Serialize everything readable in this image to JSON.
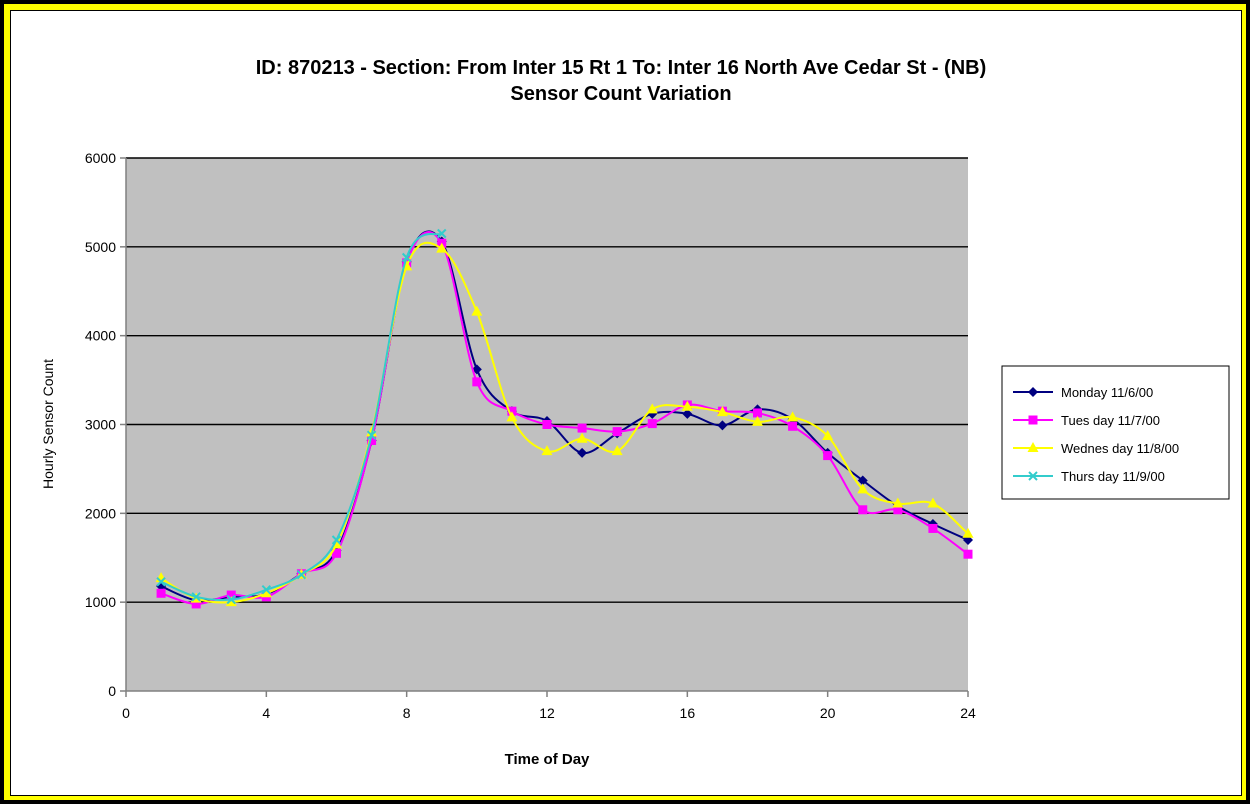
{
  "chart_data": {
    "type": "line",
    "title": "ID: 870213 - Section:  From Inter 15 Rt 1  To: Inter 16 North Ave Cedar St - (NB)",
    "subtitle": "Sensor Count Variation",
    "xlabel": "Time of Day",
    "ylabel": "Hourly Sensor Count",
    "xlim": [
      0,
      24
    ],
    "ylim": [
      0,
      6000
    ],
    "xticks": [
      0,
      4,
      8,
      12,
      16,
      20,
      24
    ],
    "yticks": [
      0,
      1000,
      2000,
      3000,
      4000,
      5000,
      6000
    ],
    "grid": "horizontal",
    "legend_position": "right",
    "plot_background": "#c0c0c0",
    "series": [
      {
        "name": "Monday 11/6/00",
        "color": "#000080",
        "marker": "diamond",
        "x": [
          1,
          2,
          3,
          4,
          5,
          6,
          7,
          8,
          9,
          10,
          11,
          12,
          13,
          14,
          15,
          16,
          17,
          18,
          19,
          20,
          21,
          22,
          23,
          24
        ],
        "y": [
          1180,
          1020,
          1060,
          1090,
          1320,
          1580,
          2820,
          4830,
          5060,
          3620,
          3150,
          3040,
          2680,
          2900,
          3120,
          3120,
          2990,
          3170,
          3060,
          2680,
          2370,
          2080,
          1880,
          1700
        ]
      },
      {
        "name": "Tues day 11/7/00",
        "color": "#ff00ff",
        "marker": "square",
        "x": [
          1,
          2,
          3,
          4,
          5,
          6,
          7,
          8,
          9,
          10,
          11,
          12,
          13,
          14,
          15,
          16,
          17,
          18,
          19,
          20,
          21,
          22,
          23,
          24
        ],
        "y": [
          1100,
          980,
          1080,
          1060,
          1320,
          1550,
          2820,
          4820,
          5040,
          3480,
          3150,
          3000,
          2960,
          2920,
          3010,
          3220,
          3150,
          3130,
          2980,
          2650,
          2040,
          2040,
          1830,
          1540
        ]
      },
      {
        "name": "Wednes day 11/8/00",
        "color": "#ffff00",
        "marker": "triangle",
        "x": [
          1,
          2,
          3,
          4,
          5,
          6,
          7,
          8,
          9,
          10,
          11,
          12,
          13,
          14,
          15,
          16,
          17,
          18,
          19,
          20,
          21,
          22,
          23,
          24
        ],
        "y": [
          1270,
          1040,
          1000,
          1100,
          1310,
          1650,
          2910,
          4780,
          4980,
          4270,
          3080,
          2700,
          2840,
          2700,
          3170,
          3200,
          3140,
          3030,
          3080,
          2870,
          2270,
          2110,
          2110,
          1770
        ]
      },
      {
        "name": "Thurs day 11/9/00",
        "color": "#33cccc",
        "marker": "x",
        "x": [
          1,
          2,
          3,
          4,
          5,
          6,
          7,
          8,
          9
        ],
        "y": [
          1230,
          1060,
          1030,
          1140,
          1310,
          1700,
          2880,
          4880,
          5150
        ]
      }
    ]
  }
}
